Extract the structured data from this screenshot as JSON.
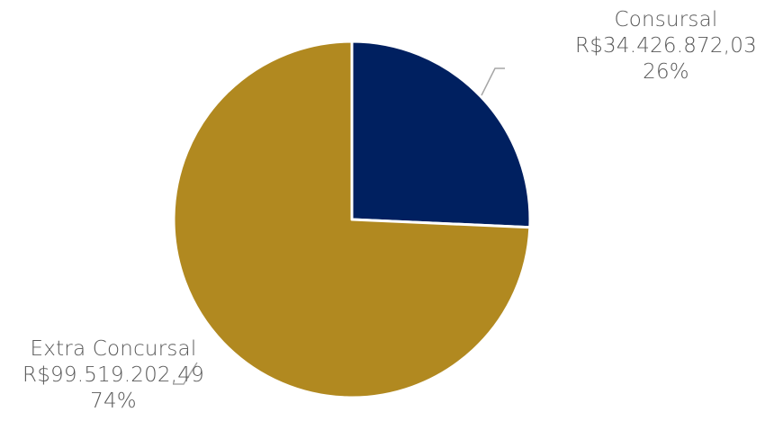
{
  "chart_data": {
    "type": "pie",
    "slices": [
      {
        "label": "Consursal",
        "value_text": "R$34.426.872,03",
        "percent_text": "26%",
        "value": 34426872.03,
        "color": "#002060"
      },
      {
        "label": "Extra Concursal",
        "value_text": "R$99.519.202,49",
        "percent_text": "74%",
        "value": 99519202.49,
        "color": "#B18920"
      }
    ],
    "start_angle": "12 o'clock",
    "direction": "clockwise",
    "legend": "none",
    "leader_line_color": "#A6A6A6"
  }
}
